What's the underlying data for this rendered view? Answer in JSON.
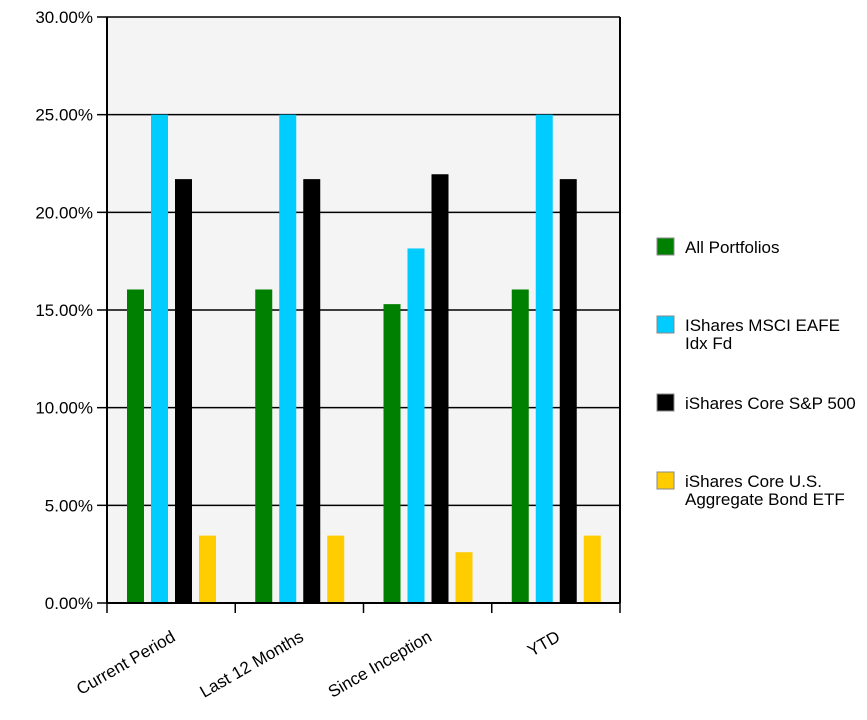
{
  "chart_data": {
    "type": "bar",
    "categories": [
      "Current Period",
      "Last 12 Months",
      "Since Inception",
      "YTD"
    ],
    "series": [
      {
        "name": "All Portfolios",
        "color": "#008000",
        "values": [
          16.05,
          16.05,
          15.3,
          16.05
        ]
      },
      {
        "name": "IShares MSCI EAFE Idx Fd",
        "color": "#00ccff",
        "values": [
          25.0,
          25.0,
          18.15,
          25.0
        ]
      },
      {
        "name": "iShares Core S&P 500",
        "color": "#000000",
        "values": [
          21.7,
          21.7,
          21.95,
          21.7
        ]
      },
      {
        "name": "iShares Core U.S. Aggregate Bond ETF",
        "color": "#ffcc00",
        "values": [
          3.45,
          3.45,
          2.6,
          3.45
        ]
      }
    ],
    "yticks": [
      "0.00%",
      "5.00%",
      "10.00%",
      "15.00%",
      "20.00%",
      "25.00%",
      "30.00%"
    ],
    "ylim": [
      0,
      30
    ],
    "grid": true,
    "legend": "right",
    "plot_background": "#f4f4f4"
  }
}
